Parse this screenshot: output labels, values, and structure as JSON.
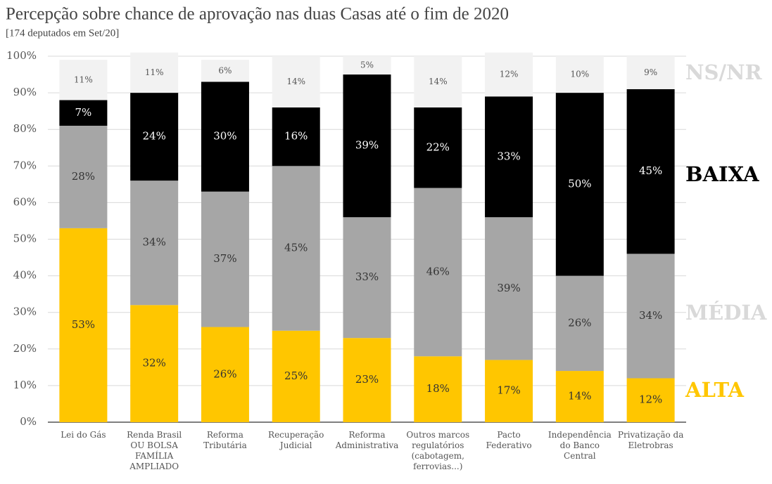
{
  "chart_data": {
    "type": "stacked_bar",
    "title": "Percepção sobre chance de aprovação nas duas Casas até o fim de 2020",
    "subtitle": "[174 deputados em Set/20]",
    "categories": [
      "Lei do Gás",
      "Renda Brasil OU BOLSA FAMÍLIA AMPLIADO",
      "Reforma Tributária",
      "Recuperação Judicial",
      "Reforma Administrativa",
      "Outros marcos regulatórios (cabotagem, ferrovias...)",
      "Pacto Federativo",
      "Independência do Banco Central",
      "Privatização da Eletrobras"
    ],
    "series": [
      {
        "name": "ALTA",
        "color": "#ffc600",
        "label_color": "#333333",
        "values": [
          53,
          32,
          26,
          25,
          23,
          18,
          17,
          14,
          12
        ],
        "value_labels": [
          "53%",
          "32%",
          "26%",
          "25%",
          "23%",
          "18%",
          "17%",
          "14%",
          "12%"
        ]
      },
      {
        "name": "MÉDIA",
        "color": "#a6a6a6",
        "label_color": "#333333",
        "values": [
          28,
          34,
          37,
          45,
          33,
          46,
          39,
          26,
          34
        ],
        "value_labels": [
          "28%",
          "34%",
          "37%",
          "45%",
          "33%",
          "46%",
          "39%",
          "26%",
          "34%"
        ]
      },
      {
        "name": "BAIXA",
        "color": "#000000",
        "label_color": "#ffffff",
        "values": [
          7,
          24,
          30,
          16,
          39,
          22,
          33,
          50,
          45
        ],
        "value_labels": [
          "7%",
          "24%",
          "30%",
          "16%",
          "39%",
          "22%",
          "33%",
          "50%",
          "45%"
        ]
      },
      {
        "name": "NS/NR",
        "color": "#f2f2f2",
        "label_color": "#555555",
        "values": [
          11,
          11,
          6,
          14,
          5,
          14,
          12,
          10,
          9
        ],
        "value_labels": [
          "11%",
          "11%",
          "6%",
          "14%",
          "5%",
          "14%",
          "12%",
          "10%",
          "9%"
        ]
      }
    ],
    "ylim": [
      0,
      100
    ],
    "yticks": [
      {
        "value": 0,
        "label": "0%"
      },
      {
        "value": 10,
        "label": "10%"
      },
      {
        "value": 20,
        "label": "20%"
      },
      {
        "value": 30,
        "label": "30%"
      },
      {
        "value": 40,
        "label": "40%"
      },
      {
        "value": 50,
        "label": "50%"
      },
      {
        "value": 60,
        "label": "60%"
      },
      {
        "value": 70,
        "label": "70%"
      },
      {
        "value": 80,
        "label": "80%"
      },
      {
        "value": 90,
        "label": "90%"
      },
      {
        "value": 100,
        "label": "100%"
      }
    ],
    "grid": true
  }
}
